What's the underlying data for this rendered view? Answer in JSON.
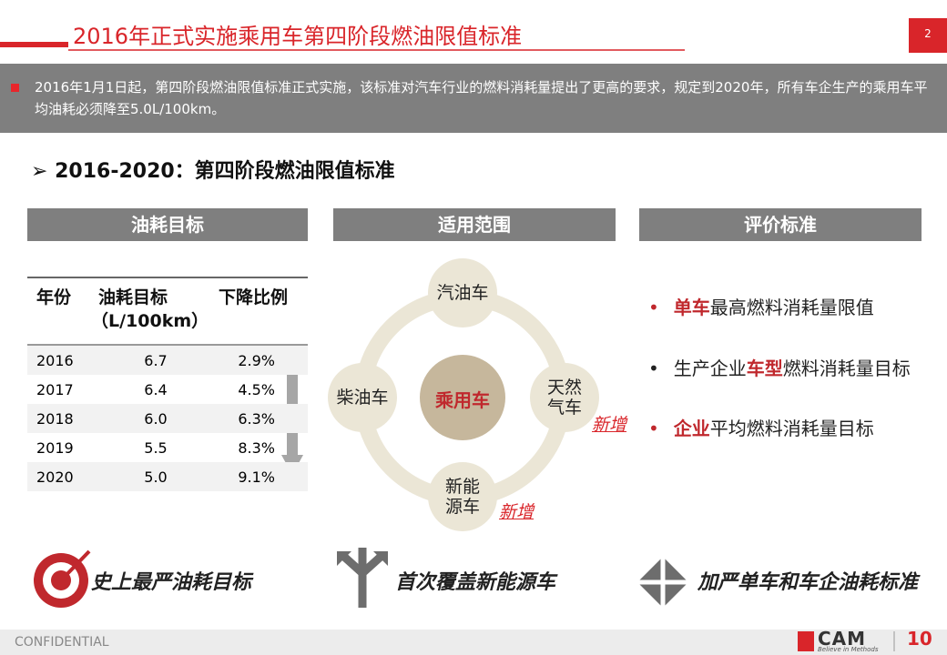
{
  "header": {
    "title": "2016年正式实施乘用车第四阶段燃油限值标准",
    "page": "2"
  },
  "summary": "2016年1月1日起，第四阶段燃油限值标准正式实施，该标准对汽车行业的燃料消耗量提出了更高的要求，规定到2020年，所有车企生产的乘用车平均油耗必须降至5.0L/100km。",
  "section_title": "2016-2020：第四阶段燃油限值标准",
  "columns": [
    "油耗目标",
    "适用范围",
    "评价标准"
  ],
  "table": {
    "headers": [
      "年份",
      "油耗目标",
      "下降比例"
    ],
    "header_unit": "（L/100km）",
    "rows": [
      [
        "2016",
        "6.7",
        "2.9%"
      ],
      [
        "2017",
        "6.4",
        "4.5%"
      ],
      [
        "2018",
        "6.0",
        "6.3%"
      ],
      [
        "2019",
        "5.5",
        "8.3%"
      ],
      [
        "2020",
        "5.0",
        "9.1%"
      ]
    ]
  },
  "scope": {
    "center": "乘用车",
    "nodes": [
      {
        "label": "汽油车"
      },
      {
        "label": "天然气车",
        "tag": "新增"
      },
      {
        "label": "新能源车",
        "tag": "新增"
      },
      {
        "label": "柴油车"
      }
    ]
  },
  "criteria": [
    [
      {
        "text": "单车",
        "emphasis": true
      },
      {
        "text": "最高燃料消耗量限值"
      }
    ],
    [
      {
        "text": "生产企业"
      },
      {
        "text": "车型",
        "emphasis": true
      },
      {
        "text": "燃料消耗量目标"
      }
    ],
    [
      {
        "text": "企业",
        "emphasis": true
      },
      {
        "text": "平均燃料消耗量目标"
      }
    ]
  ],
  "highlights": [
    "史上最严油耗目标",
    "首次覆盖新能源车",
    "加严单车和车企油耗标准"
  ],
  "footer": {
    "confidential": "CONFIDENTIAL",
    "logo": "CAM",
    "slogan": "Believe in Methods",
    "badge": "10"
  }
}
